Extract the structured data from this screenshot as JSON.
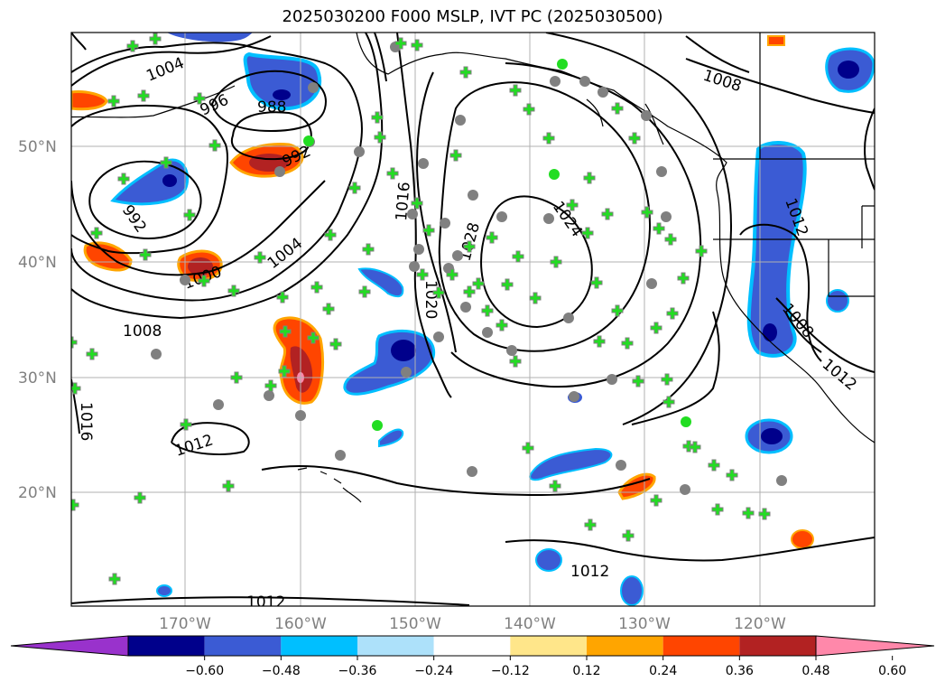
{
  "title": "2025030200 F000 MSLP, IVT PC (2025030500)",
  "lat_labels": [
    "50°N",
    "40°N",
    "30°N",
    "20°N"
  ],
  "lon_labels": [
    "170°W",
    "160°W",
    "150°W",
    "140°W",
    "130°W",
    "120°W"
  ],
  "isobar_labels": [
    "1004",
    "996",
    "988",
    "992",
    "992",
    "1000",
    "1004",
    "1008",
    "1016",
    "1012",
    "1020",
    "1016",
    "1024",
    "1028",
    "1008",
    "1012",
    "1008",
    "1012",
    "1012",
    "1012"
  ],
  "colorbar": {
    "colors": [
      "#9932CC",
      "#00008B",
      "#3B5BD4",
      "#00BFFF",
      "#ADE1FA",
      "#FFFFFF",
      "#FFE68A",
      "#FFA500",
      "#FF4500",
      "#B22222",
      "#FF88AA"
    ],
    "ticks": [
      "−0.60",
      "−0.48",
      "−0.36",
      "−0.24",
      "−0.12",
      "0.12",
      "0.24",
      "0.36",
      "0.48",
      "0.60"
    ]
  },
  "colors": {
    "station_marker": "#22DD22",
    "station_ring": "#808080",
    "grid": "#B0B0B0",
    "coast": "#000000"
  }
}
